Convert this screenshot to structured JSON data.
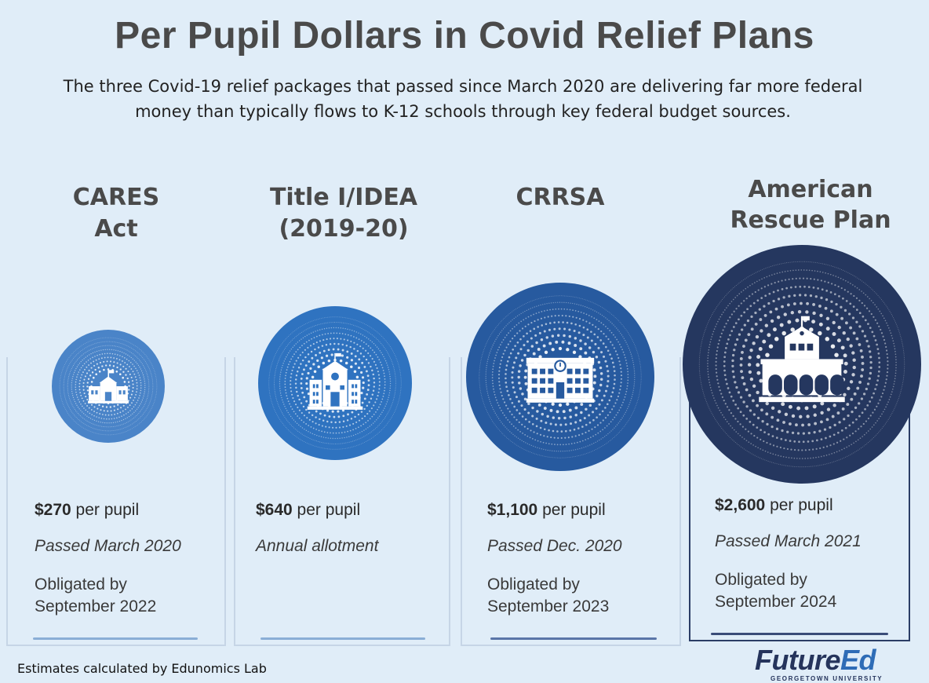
{
  "header": {
    "title": "Per Pupil Dollars in Covid Relief Plans",
    "subtitle_line1": "The three Covid-19 relief packages that passed since March 2020 are delivering far more federal",
    "subtitle_line2": "money than typically flows to K-12 schools through key federal budget sources."
  },
  "columns": [
    {
      "title_line1": "CARES",
      "title_line2": "Act",
      "amount": "$270",
      "amount_suffix": " per pupil",
      "note": "Passed March 2020",
      "oblig_line1": "Obligated by",
      "oblig_line2": "September 2022",
      "value": 270,
      "color": "#4a84c8",
      "icon": "school-small-icon"
    },
    {
      "title_line1": "Title I/IDEA",
      "title_line2": "(2019-20)",
      "amount": "$640",
      "amount_suffix": " per pupil",
      "note": "Annual allotment",
      "value": 640,
      "color": "#2f73c0",
      "icon": "school-clock-icon"
    },
    {
      "title_line1": "CRRSA",
      "amount": "$1,100",
      "amount_suffix": " per pupil",
      "note": "Passed Dec. 2020",
      "oblig_line1": "Obligated by",
      "oblig_line2": "September 2023",
      "value": 1100,
      "color": "#275a9f",
      "icon": "school-building-icon"
    },
    {
      "title_line1": "American",
      "title_line2": "Rescue Plan",
      "amount": "$2,600",
      "amount_suffix": " per pupil",
      "note": "Passed March 2021",
      "oblig_line1": "Obligated by",
      "oblig_line2": "September 2024",
      "value": 2600,
      "color": "#25375f",
      "icon": "courthouse-icon"
    }
  ],
  "footer": {
    "source": "Estimates calculated by Edunomics Lab"
  },
  "logo": {
    "brand_main": "Future",
    "brand_accent": "Ed",
    "sub": "GEORGETOWN UNIVERSITY"
  }
}
